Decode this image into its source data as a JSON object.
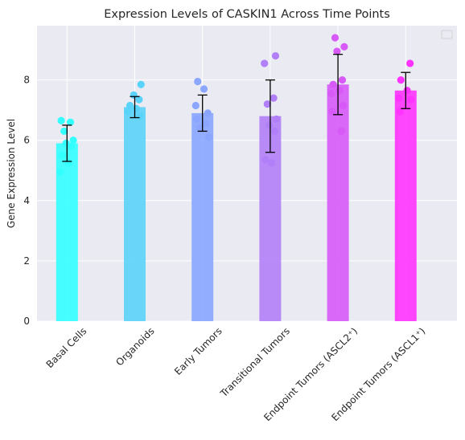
{
  "chart_data": {
    "type": "bar",
    "title": "Expression Levels of CASKIN1 Across Time Points",
    "xlabel": "",
    "ylabel": "Gene Expression Level",
    "ylim": [
      0,
      9.8
    ],
    "yticks": [
      0,
      2,
      4,
      6,
      8
    ],
    "grid": true,
    "legend": "top-right",
    "categories": [
      "Basal Cells",
      "Organoids",
      "Early Tumors",
      "Transitional Tumors",
      "Endpoint Tumors (ASCL2⁺)",
      "Endpoint Tumors (ASCL1⁺)"
    ],
    "values": [
      5.9,
      7.1,
      6.9,
      6.8,
      7.85,
      7.65
    ],
    "errors": [
      0.6,
      0.35,
      0.6,
      1.2,
      1.0,
      0.6
    ],
    "colors": [
      "#33ffff",
      "#5ad3fa",
      "#8aa6ff",
      "#b17ff7",
      "#d759f7",
      "#ff33ff"
    ],
    "points": [
      [
        6.65,
        6.6,
        6.3,
        6.0,
        5.9,
        5.8,
        5.5,
        5.25,
        4.95
      ],
      [
        7.85,
        7.5,
        7.35,
        7.15,
        7.05,
        6.95,
        6.8
      ],
      [
        7.95,
        7.7,
        7.15,
        6.9,
        6.7,
        6.55,
        6.4,
        6.1
      ],
      [
        8.8,
        8.55,
        7.4,
        7.2,
        6.7,
        6.5,
        6.3,
        5.35,
        5.25
      ],
      [
        9.4,
        9.1,
        8.95,
        8.0,
        7.85,
        7.65,
        7.55,
        7.15,
        6.95,
        6.3
      ],
      [
        8.55,
        8.0,
        7.65,
        7.4,
        7.35,
        6.95
      ]
    ]
  }
}
